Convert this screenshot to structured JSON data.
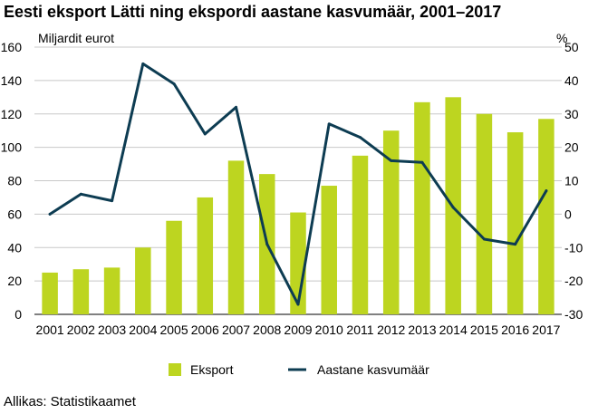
{
  "chart_data": {
    "type": "bar",
    "title": "Eesti eksport Lätti ning ekspordi aastane kasvumäär, 2001–2017",
    "ylabel": "Miljardit eurot",
    "y2label": "%",
    "categories": [
      "2001",
      "2002",
      "2003",
      "2004",
      "2005",
      "2006",
      "2007",
      "2008",
      "2009",
      "2010",
      "2011",
      "2012",
      "2013",
      "2014",
      "2015",
      "2016",
      "2017"
    ],
    "ylim": [
      0,
      160
    ],
    "y2lim": [
      -30,
      50
    ],
    "yticks": [
      "0",
      "20",
      "40",
      "60",
      "80",
      "100",
      "120",
      "140",
      "160"
    ],
    "y2ticks": [
      "-30",
      "-20",
      "-10",
      "0",
      "10",
      "20",
      "30",
      "40",
      "50"
    ],
    "series": [
      {
        "name": "Eksport",
        "kind": "bar",
        "axis": "left",
        "color": "#bdd520",
        "values": [
          25,
          27,
          28,
          40,
          56,
          70,
          92,
          84,
          61,
          77,
          95,
          110,
          127,
          130,
          120,
          109,
          117
        ]
      },
      {
        "name": "Aastane kasvumäär",
        "kind": "line",
        "axis": "right",
        "color": "#0d3c52",
        "values": [
          0,
          6,
          4,
          45,
          39,
          24,
          32,
          -9,
          -27,
          27,
          23,
          16,
          15.5,
          2,
          -7.5,
          -9,
          7
        ]
      }
    ],
    "grid": true,
    "legend_position": "bottom"
  },
  "source": "Allikas: Statistikaamet"
}
